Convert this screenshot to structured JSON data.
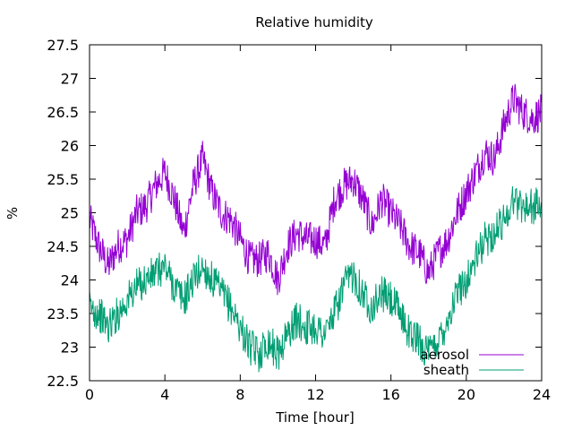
{
  "chart_data": {
    "type": "line",
    "title": "Relative humidity",
    "xlabel": "Time [hour]",
    "ylabel": "%",
    "xlim": [
      0,
      24
    ],
    "ylim": [
      22.5,
      27.5
    ],
    "xticks": [
      0,
      4,
      8,
      12,
      16,
      20,
      24
    ],
    "yticks": [
      22.5,
      23,
      23.5,
      24,
      24.5,
      25,
      25.5,
      26,
      26.5,
      27,
      27.5
    ],
    "xtick_labels": [
      "0",
      "4",
      "8",
      "12",
      "16",
      "20",
      "24"
    ],
    "ytick_labels": [
      "22.5",
      "23",
      "23.5",
      "24",
      "24.5",
      "25",
      "25.5",
      "26",
      "26.5",
      "27",
      "27.5"
    ],
    "grid": false,
    "legend_position": "bottom-right",
    "x": [
      0.0,
      0.5,
      1.0,
      1.5,
      2.0,
      2.5,
      3.0,
      3.5,
      4.0,
      4.5,
      5.0,
      5.5,
      6.0,
      6.5,
      7.0,
      7.5,
      8.0,
      8.5,
      9.0,
      9.5,
      10.0,
      10.5,
      11.0,
      11.5,
      12.0,
      12.5,
      13.0,
      13.5,
      14.0,
      14.5,
      15.0,
      15.5,
      16.0,
      16.5,
      17.0,
      17.5,
      18.0,
      18.5,
      19.0,
      19.5,
      20.0,
      20.5,
      21.0,
      21.5,
      22.0,
      22.5,
      23.0,
      23.5,
      24.0
    ],
    "series": [
      {
        "name": "aerosol",
        "color": "#9400d3",
        "values": [
          24.9,
          24.5,
          24.2,
          24.5,
          24.6,
          25.0,
          25.1,
          25.4,
          25.6,
          25.2,
          24.7,
          25.4,
          25.8,
          25.3,
          25.0,
          24.9,
          24.6,
          24.3,
          24.3,
          24.4,
          24.0,
          24.5,
          24.7,
          24.6,
          24.6,
          24.5,
          25.2,
          25.4,
          25.5,
          25.2,
          24.8,
          25.2,
          25.0,
          24.8,
          24.5,
          24.4,
          24.1,
          24.4,
          24.6,
          25.0,
          25.3,
          25.6,
          25.9,
          25.8,
          26.3,
          26.7,
          26.5,
          26.4,
          26.5
        ]
      },
      {
        "name": "sheath",
        "color": "#009e73",
        "values": [
          23.6,
          23.5,
          23.3,
          23.5,
          23.7,
          23.9,
          24.0,
          24.1,
          24.2,
          23.9,
          23.7,
          24.0,
          24.2,
          24.0,
          23.8,
          23.6,
          23.3,
          23.0,
          22.9,
          23.1,
          22.9,
          23.2,
          23.4,
          23.3,
          23.3,
          23.2,
          23.5,
          23.9,
          24.1,
          23.8,
          23.6,
          23.8,
          23.7,
          23.5,
          23.2,
          23.1,
          22.9,
          23.1,
          23.4,
          23.8,
          24.0,
          24.3,
          24.6,
          24.7,
          24.9,
          25.2,
          25.1,
          25.1,
          25.1
        ]
      }
    ]
  }
}
